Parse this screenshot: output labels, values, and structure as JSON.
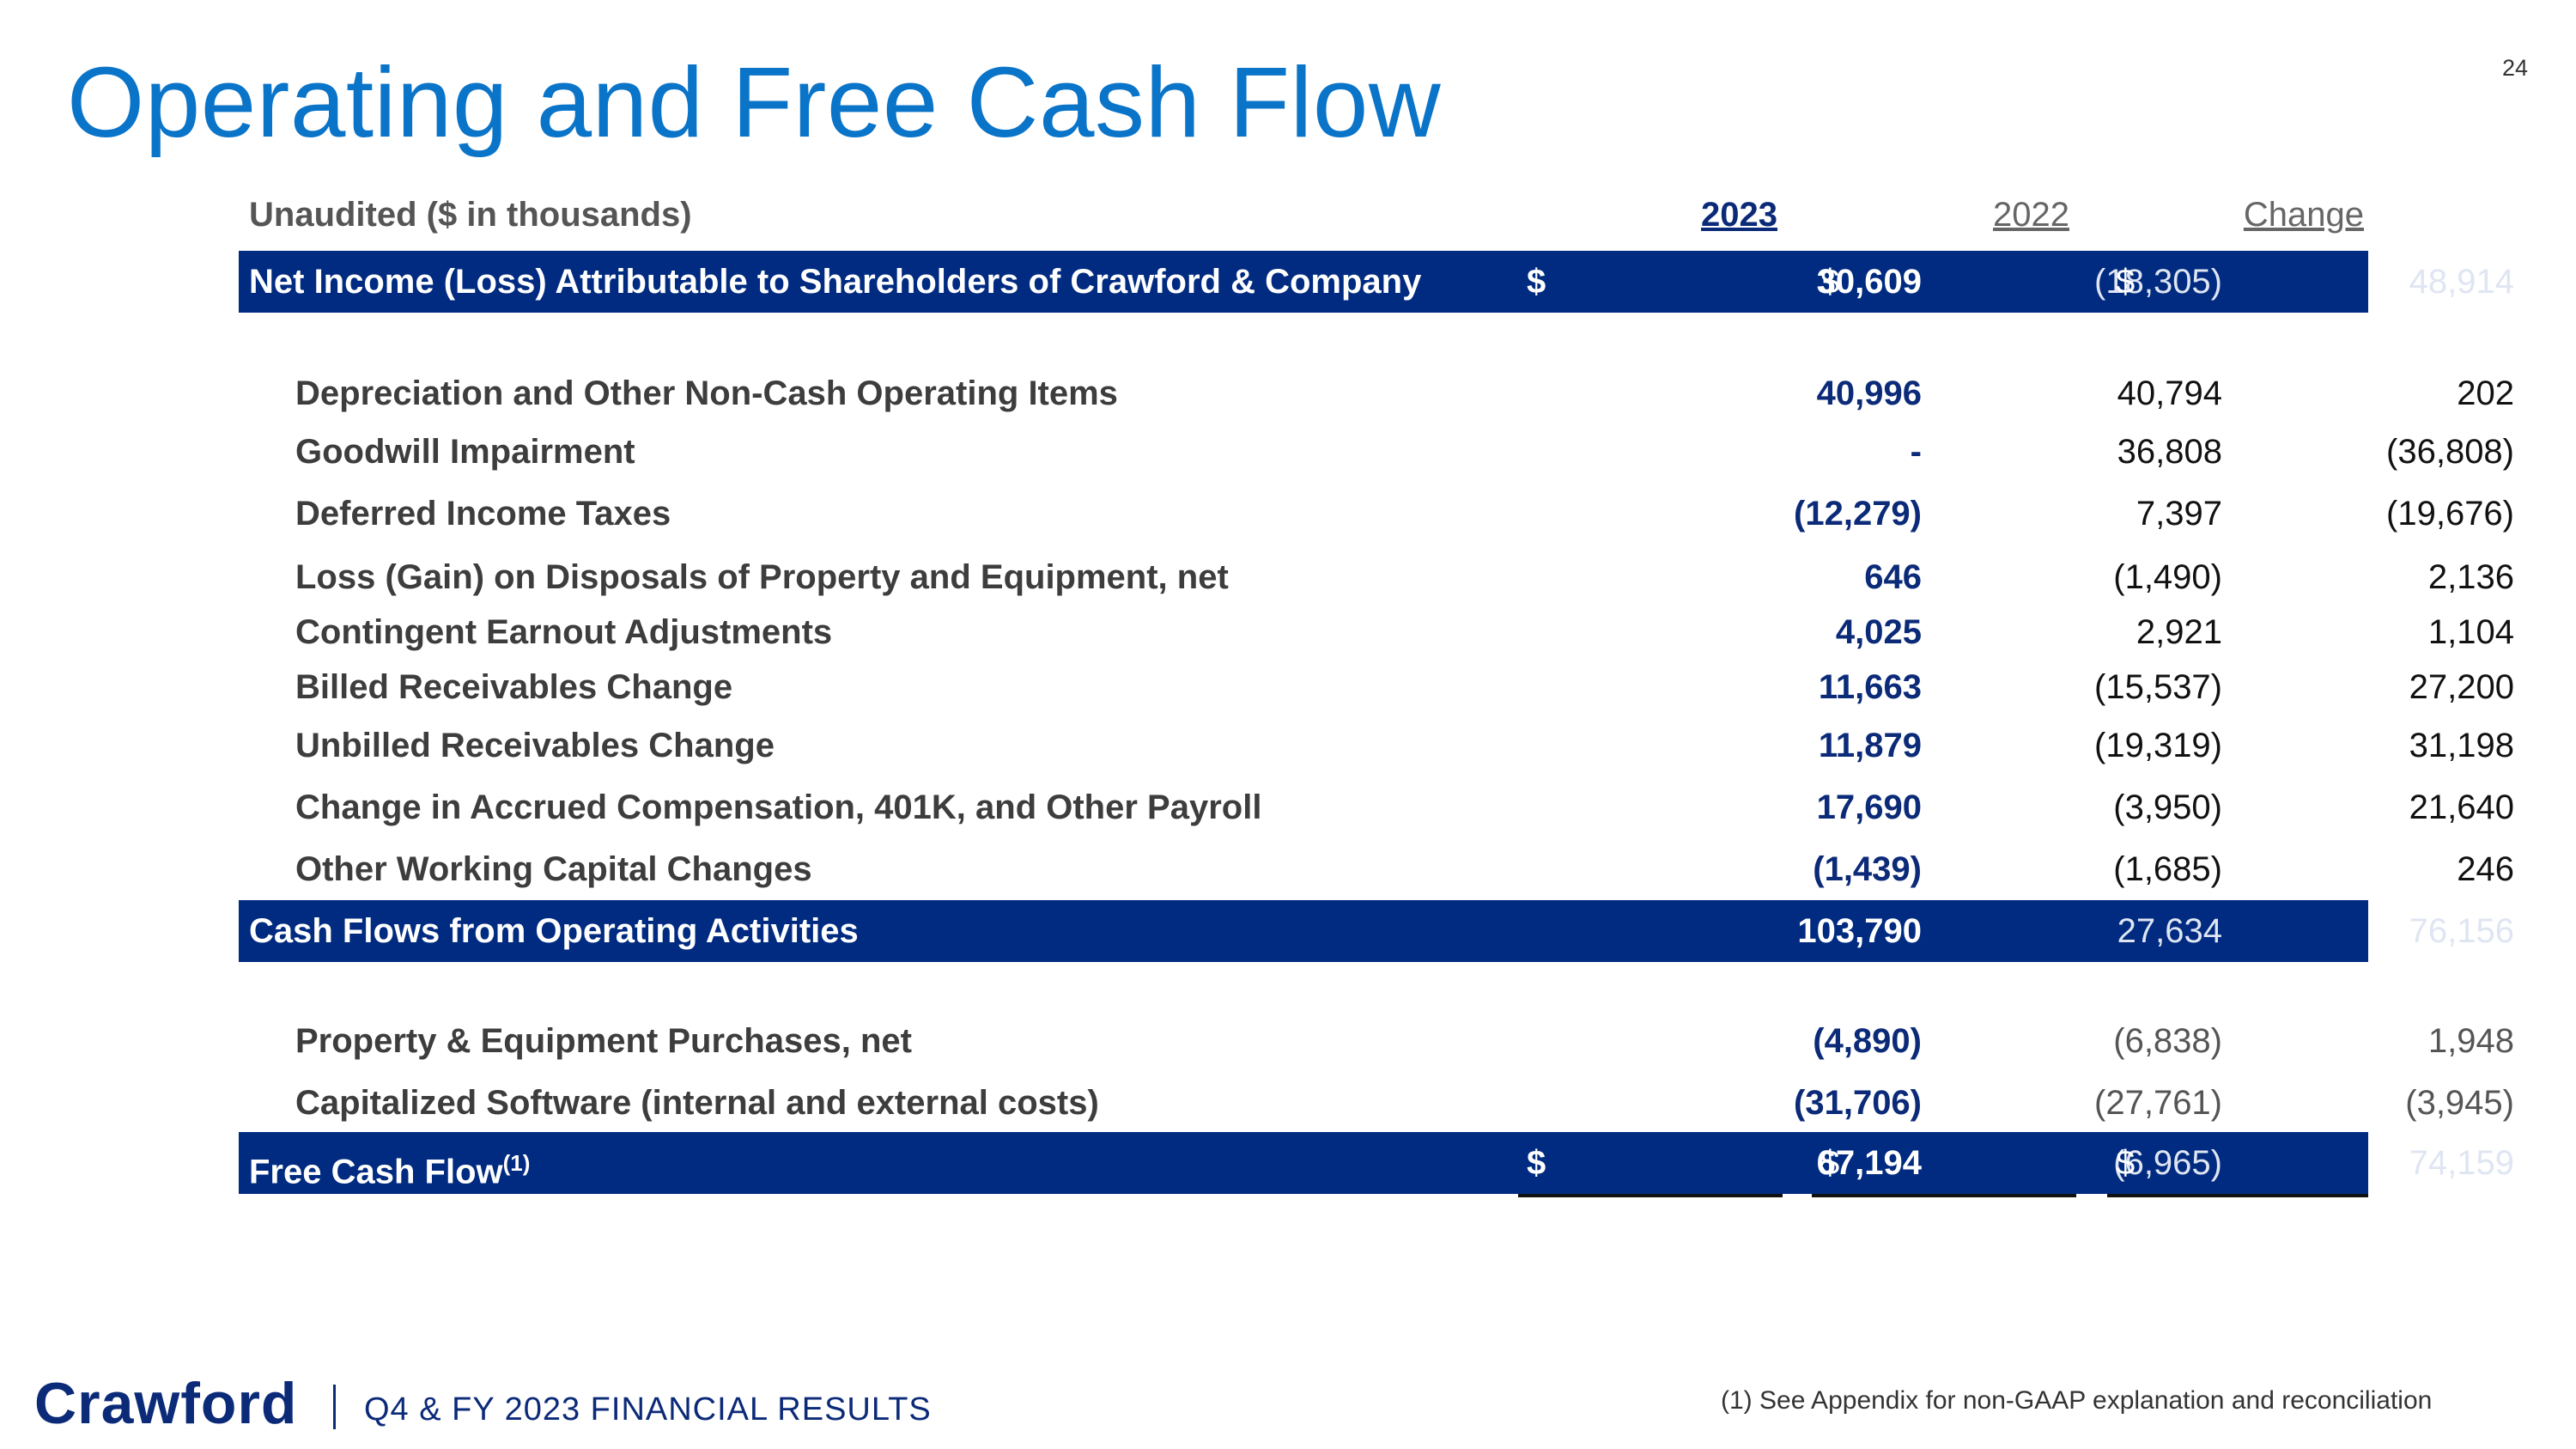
{
  "page_number": "24",
  "title": "Operating and Free Cash Flow",
  "header": {
    "label": "Unaudited ($ in thousands)",
    "col_2023": "2023",
    "col_2022": "2022",
    "col_change": "Change"
  },
  "net_income": {
    "label": "Net Income (Loss) Attributable to Shareholders of Crawford & Company",
    "dollar": "$",
    "v2023": "30,609",
    "v2022": "(18,305)",
    "change": "48,914"
  },
  "operating_items": [
    {
      "label": "Depreciation and Other Non-Cash Operating Items",
      "v2023": "40,996",
      "v2022": "40,794",
      "change": "202"
    },
    {
      "label": "Goodwill Impairment",
      "v2023": "-",
      "v2022": "36,808",
      "change": "(36,808)"
    },
    {
      "label": "Deferred Income Taxes",
      "v2023": "(12,279)",
      "v2022": "7,397",
      "change": "(19,676)"
    },
    {
      "label": "Loss (Gain) on Disposals of Property and Equipment, net",
      "v2023": "646",
      "v2022": "(1,490)",
      "change": "2,136"
    },
    {
      "label": "Contingent Earnout Adjustments",
      "v2023": "4,025",
      "v2022": "2,921",
      "change": "1,104"
    },
    {
      "label": "Billed Receivables Change",
      "v2023": "11,663",
      "v2022": "(15,537)",
      "change": "27,200"
    },
    {
      "label": "Unbilled Receivables Change",
      "v2023": "11,879",
      "v2022": "(19,319)",
      "change": "31,198"
    },
    {
      "label": "Change in Accrued Compensation, 401K, and Other Payroll",
      "v2023": "17,690",
      "v2022": "(3,950)",
      "change": "21,640"
    },
    {
      "label": "Other Working Capital Changes",
      "v2023": "(1,439)",
      "v2022": "(1,685)",
      "change": "246"
    }
  ],
  "operating_total": {
    "label": "Cash Flows from Operating Activities",
    "v2023": "103,790",
    "v2022": "27,634",
    "change": "76,156"
  },
  "investing_items": [
    {
      "label": "Property & Equipment Purchases, net",
      "v2023": "(4,890)",
      "v2022": "(6,838)",
      "change": "1,948"
    },
    {
      "label": "Capitalized Software (internal and external costs)",
      "v2023": "(31,706)",
      "v2022": "(27,761)",
      "change": "(3,945)"
    }
  ],
  "free_cash_flow": {
    "label": "Free Cash Flow",
    "footnote_ref": "(1)",
    "dollar": "$",
    "v2023": "67,194",
    "v2022": "(6,965)",
    "change": "74,159"
  },
  "footer": {
    "logo": "Crawford",
    "subtitle": "Q4 & FY 2023 FINANCIAL RESULTS",
    "footnote": "(1) See Appendix for non-GAAP explanation and reconciliation"
  }
}
